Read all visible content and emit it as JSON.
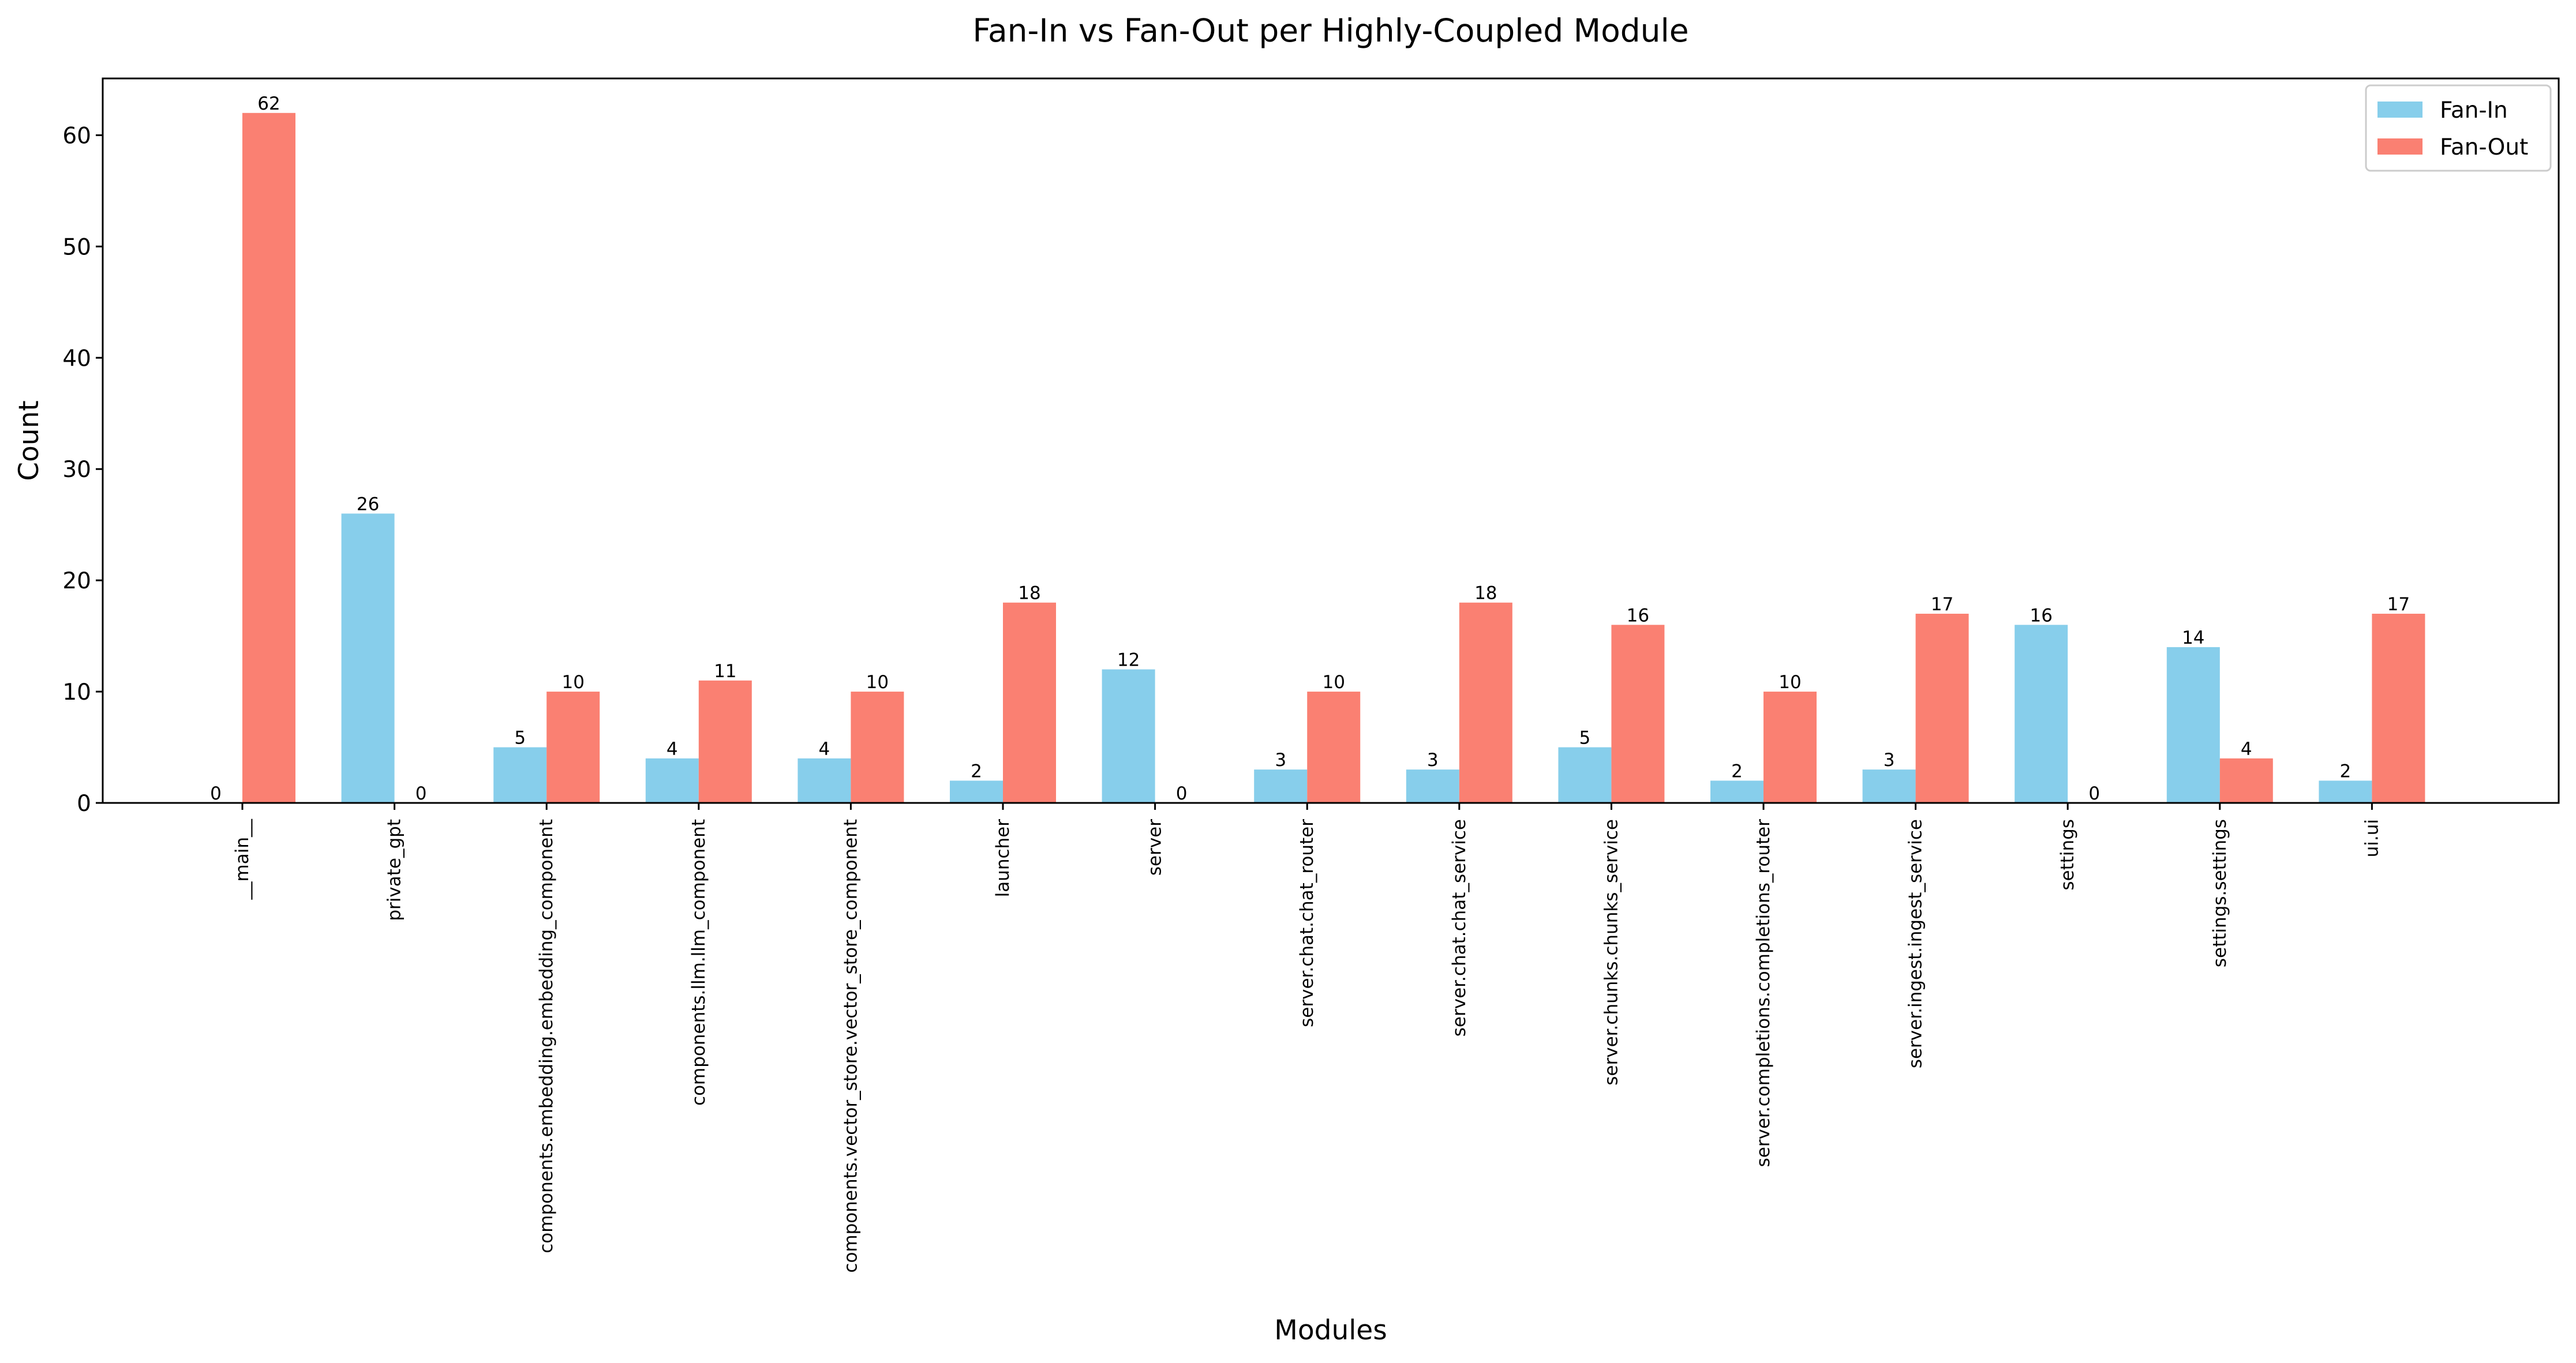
{
  "chart_data": {
    "type": "bar",
    "title": "Fan-In vs Fan-Out per Highly-Coupled Module",
    "xlabel": "Modules",
    "ylabel": "Count",
    "ylim": [
      0,
      65.1
    ],
    "yticks": [
      0,
      10,
      20,
      30,
      40,
      50,
      60
    ],
    "grid": false,
    "legend_position": "top-right",
    "categories": [
      "__main__",
      "private_gpt",
      "components.embedding.embedding_component",
      "components.llm.llm_component",
      "components.vector_store.vector_store_component",
      "launcher",
      "server",
      "server.chat.chat_router",
      "server.chat.chat_service",
      "server.chunks.chunks_service",
      "server.completions.completions_router",
      "server.ingest.ingest_service",
      "settings",
      "settings.settings",
      "ui.ui"
    ],
    "series": [
      {
        "name": "Fan-In",
        "color": "#87ceeb",
        "values": [
          0,
          26,
          5,
          4,
          4,
          2,
          12,
          3,
          3,
          5,
          2,
          3,
          16,
          14,
          2
        ]
      },
      {
        "name": "Fan-Out",
        "color": "#fa8072",
        "values": [
          62,
          0,
          10,
          11,
          10,
          18,
          0,
          10,
          18,
          16,
          10,
          17,
          0,
          4,
          17
        ]
      }
    ]
  }
}
